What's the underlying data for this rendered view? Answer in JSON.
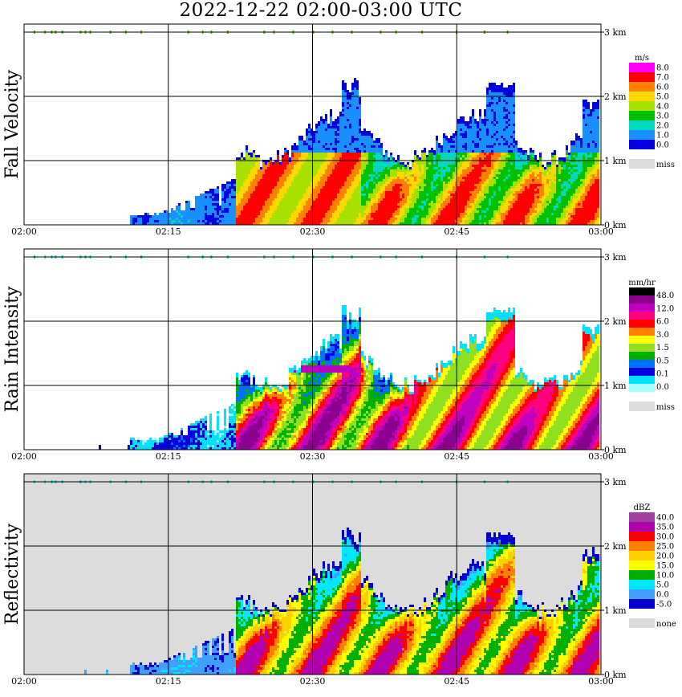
{
  "title": "2022-12-22   02:00-03:00 UTC",
  "x_ticks": [
    "02:00",
    "02:15",
    "02:30",
    "02:45",
    "03:00"
  ],
  "y_ticks": [
    "0 km",
    "1 km",
    "2 km",
    "3 km"
  ],
  "chart_data": [
    {
      "type": "heatmap",
      "ylabel": "Fall Velocity",
      "xlabel": "",
      "xlim_minutes": [
        0,
        60
      ],
      "ylim_km": [
        0,
        3
      ],
      "grid": true,
      "legend_placement": "right",
      "legend_unit": "m/s",
      "legend_ticks": [
        "8.0",
        "7.0",
        "6.0",
        "5.0",
        "4.0",
        "3.0",
        "2.0",
        "1.0",
        "0.0"
      ],
      "legend_missing_label": "miss",
      "colors": [
        "#ff00ff",
        "#ff0000",
        "#ff8000",
        "#ffd800",
        "#a8e000",
        "#00c000",
        "#00d8c0",
        "#1890ff",
        "#0000e0"
      ],
      "missing_color": "#dcdcdc"
    },
    {
      "type": "heatmap",
      "ylabel": "Rain Intensity",
      "xlabel": "",
      "xlim_minutes": [
        0,
        60
      ],
      "ylim_km": [
        0,
        3
      ],
      "grid": true,
      "legend_placement": "right",
      "legend_unit": "mm/hr",
      "legend_ticks": [
        "48.0",
        "12.0",
        "6.0",
        "3.0",
        "1.5",
        "0.5",
        "0.1",
        "0.0"
      ],
      "legend_missing_label": "miss",
      "colors": [
        "#000000",
        "#8c0090",
        "#c000c0",
        "#ff0080",
        "#ff0000",
        "#ff8000",
        "#ffff00",
        "#90e020",
        "#00b000",
        "#0070ff",
        "#0000e0",
        "#00e0ff",
        "#a0ffff"
      ],
      "missing_color": "#dcdcdc"
    },
    {
      "type": "heatmap",
      "ylabel": "Reflectivity",
      "xlabel": "",
      "xlim_minutes": [
        0,
        60
      ],
      "ylim_km": [
        0,
        3
      ],
      "grid": true,
      "legend_placement": "right",
      "legend_unit": "dBZ",
      "legend_ticks": [
        "40.0",
        "35.0",
        "30.0",
        "25.0",
        "20.0",
        "15.0",
        "10.0",
        "5.0",
        "0.0",
        "-5.0"
      ],
      "legend_missing_label": "none",
      "colors": [
        "#a040a0",
        "#b000b0",
        "#ff0000",
        "#ff8000",
        "#ffd000",
        "#ffff00",
        "#00b000",
        "#00e8ff",
        "#40a0ff",
        "#0000d0"
      ],
      "missing_color": "#dcdcdc"
    }
  ]
}
